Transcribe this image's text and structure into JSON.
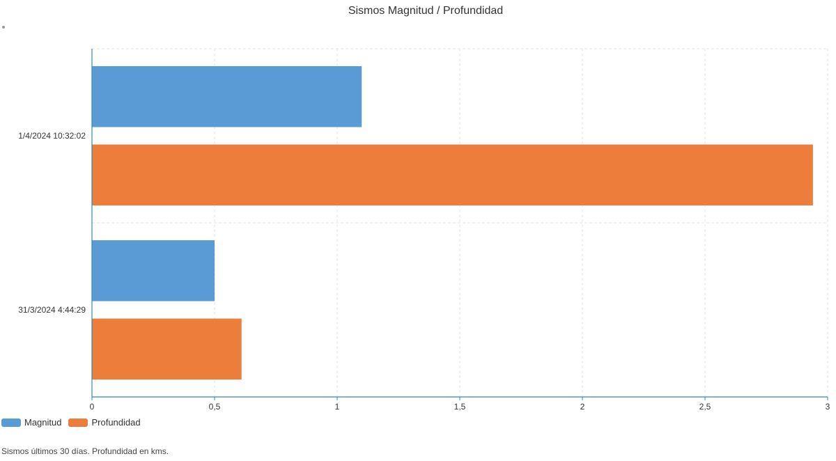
{
  "chart_data": {
    "type": "bar",
    "orientation": "horizontal",
    "title": "Sismos Magnitud / Profundidad",
    "categories": [
      "1/4/2024 10:32:02",
      "31/3/2024 4:44:29"
    ],
    "series": [
      {
        "name": "Magnitud",
        "values": [
          1.1,
          0.5
        ],
        "color": "#5b9bd5"
      },
      {
        "name": "Profundidad",
        "values": [
          2.94,
          0.61
        ],
        "color": "#ed7d3b"
      }
    ],
    "xlim": [
      0,
      3
    ],
    "xticks": [
      "0",
      "0,5",
      "1",
      "1,5",
      "2",
      "2,5",
      "3"
    ],
    "xtick_values": [
      0,
      0.5,
      1,
      1.5,
      2,
      2.5,
      3
    ],
    "grid": true,
    "legend_position": "bottom-left",
    "axis_color": "#2e8bb8"
  },
  "footnote": "Sismos últimos 30 días. Profundidad en kms."
}
